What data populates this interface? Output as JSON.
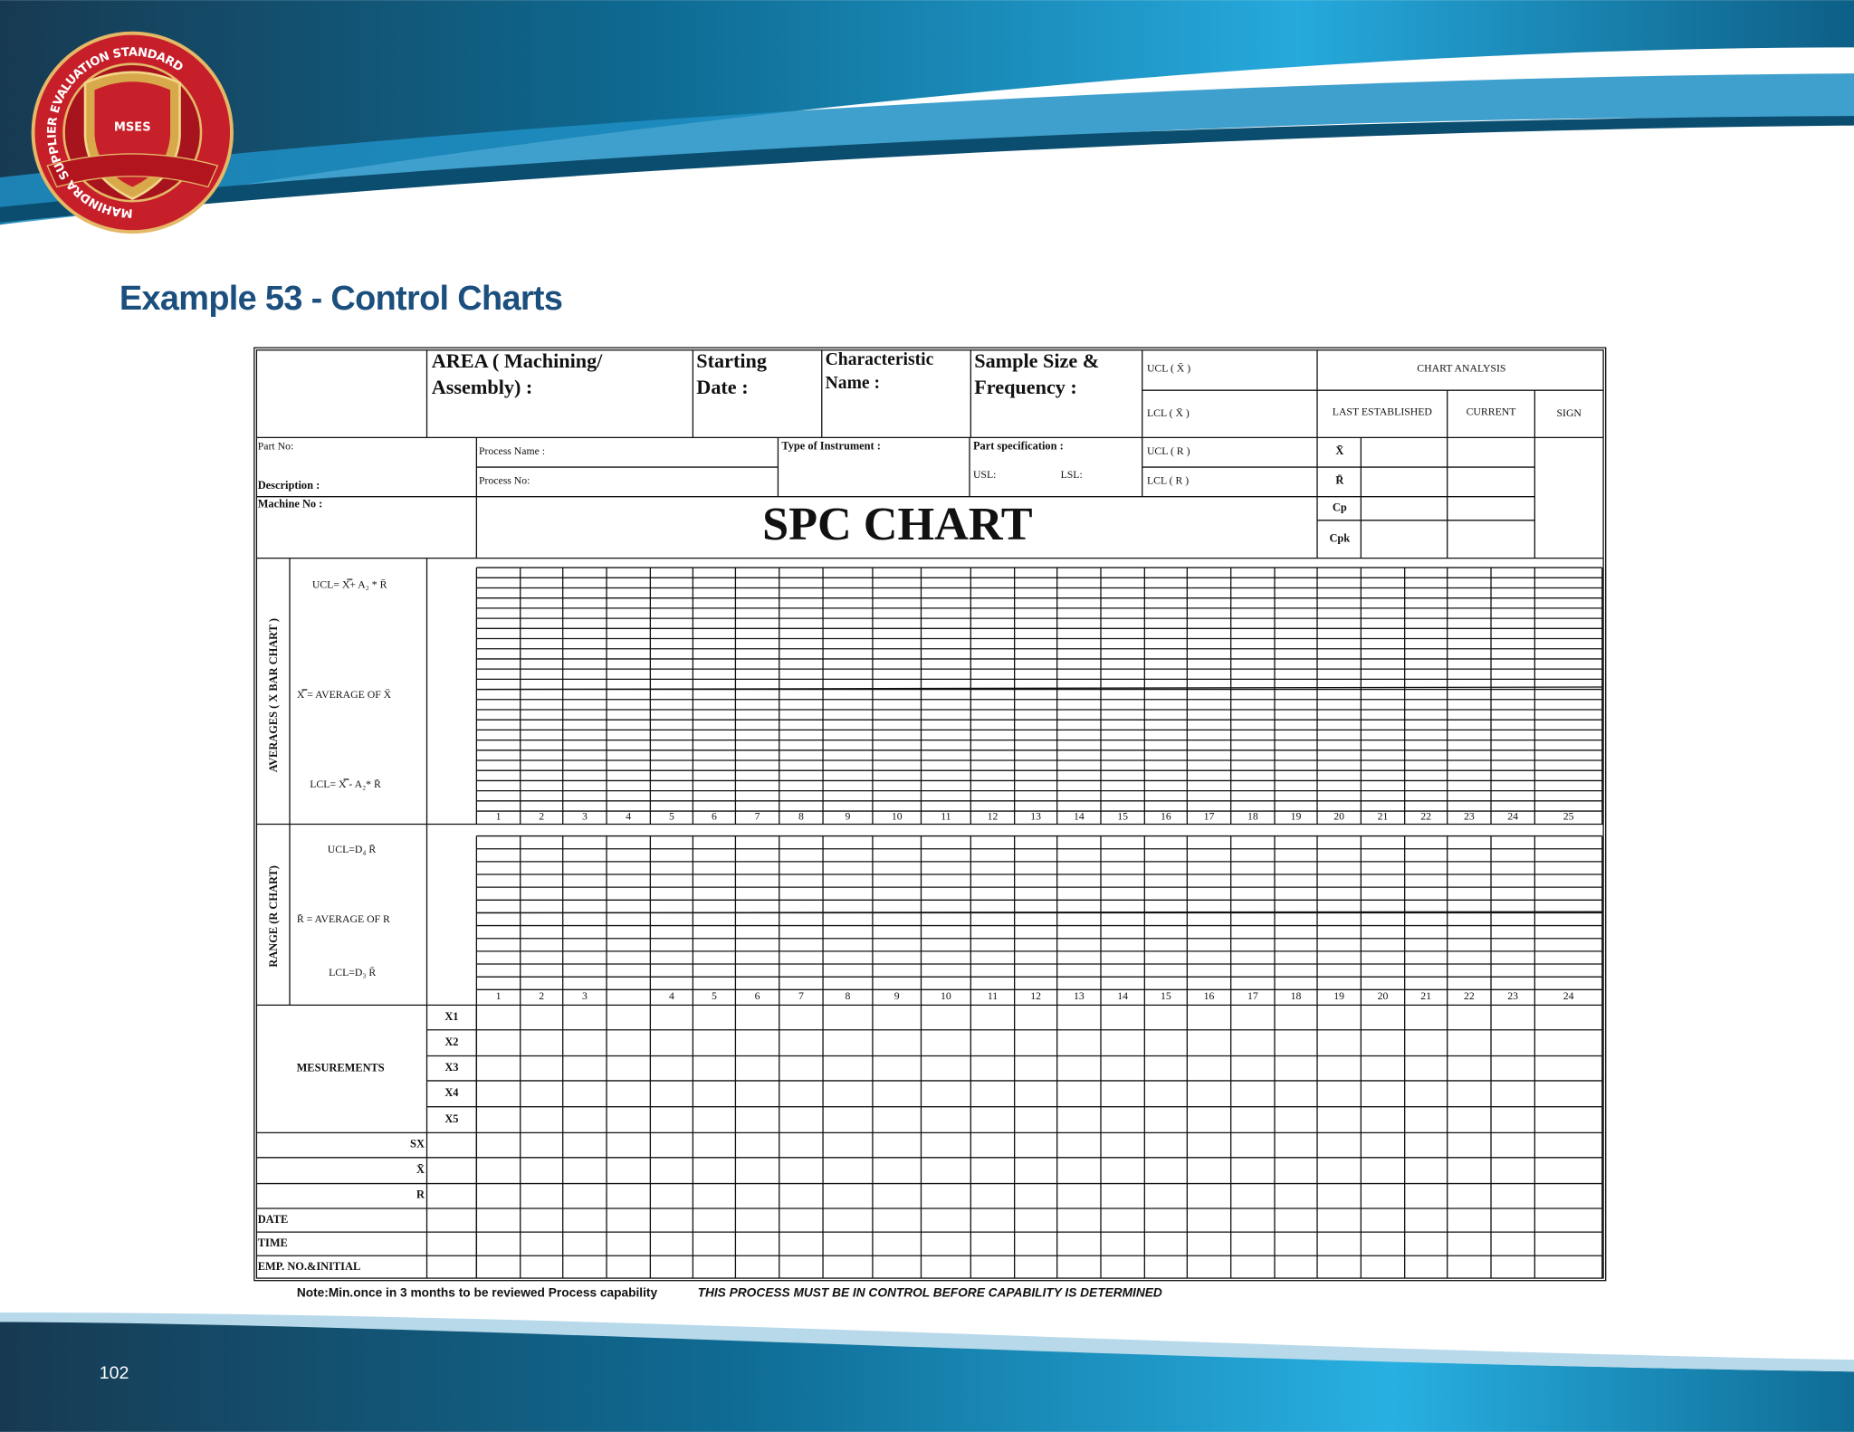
{
  "header": {
    "logo_text": "MSES",
    "logo_ring": "MAHINDRA SUPPLIER EVALUATION STANDARD"
  },
  "title": "Example 53 - Control Charts",
  "form": {
    "area": [
      "AREA  ( Machining/",
      "Assembly) :"
    ],
    "starting_date": [
      "Starting",
      "Date :"
    ],
    "characteristic": [
      "Characteristic",
      "Name :"
    ],
    "sample_size": [
      "Sample Size &",
      "Frequency :"
    ],
    "ucl_x": "UCL (  X̄  )",
    "lcl_x": "LCL ( X̄ )",
    "chart_analysis": "CHART ANALYSIS",
    "last_established": "LAST ESTABLISHED",
    "current": "CURRENT",
    "sign": "SIGN",
    "part_no": "Part No:",
    "process_name": "Process Name  :",
    "type_of_instrument": "Type of Instrument   :",
    "part_specification": "Part specification :",
    "usl": "USL:",
    "lsl": "LSL:",
    "ucl_r": "UCL  ( R )",
    "lcl_r": "LCL ( R )",
    "description": "Description :",
    "process_no": "Process  No:",
    "machine_no": "Machine No :",
    "spc_chart": "SPC CHART",
    "analysis_rows": [
      "X̄",
      "R̄",
      "Cp",
      "Cpk"
    ],
    "averages_label": "AVERAGES ( X BAR CHART )",
    "avg_ucl": "UCL= X̿+ A₂ * R̄",
    "avg_center": "X̿ = AVERAGE OF X̄",
    "avg_lcl": "LCL= X̿ -  A₂* R̄",
    "avg_numbers": [
      1,
      2,
      3,
      4,
      5,
      6,
      7,
      8,
      9,
      10,
      11,
      12,
      13,
      14,
      15,
      16,
      17,
      18,
      19,
      20,
      21,
      22,
      23,
      24,
      25
    ],
    "range_label": "RANGE (R CHART)",
    "range_ucl": "UCL=D₄ R̄",
    "range_center": "R̄ = AVERAGE OF R",
    "range_lcl": "LCL=D₃ R̄",
    "range_numbers": [
      1,
      2,
      3,
      null,
      4,
      5,
      6,
      7,
      8,
      9,
      10,
      11,
      12,
      13,
      14,
      15,
      16,
      17,
      18,
      19,
      20,
      21,
      22,
      23,
      24
    ],
    "measurements": "MESUREMENTS",
    "x_rows": [
      "X1",
      "X2",
      "X3",
      "X4",
      "X5"
    ],
    "sx": "SX",
    "xbar": "X̄",
    "r": "R",
    "date": "DATE",
    "time": "TIME",
    "emp": "EMP. NO.&INITIAL"
  },
  "note": "Note:Min.once in 3 months to be reviewed Process capability",
  "note_italic": "THIS PROCESS MUST BE IN CONTROL BEFORE CAPABILITY IS DETERMINED",
  "page_number": "102"
}
